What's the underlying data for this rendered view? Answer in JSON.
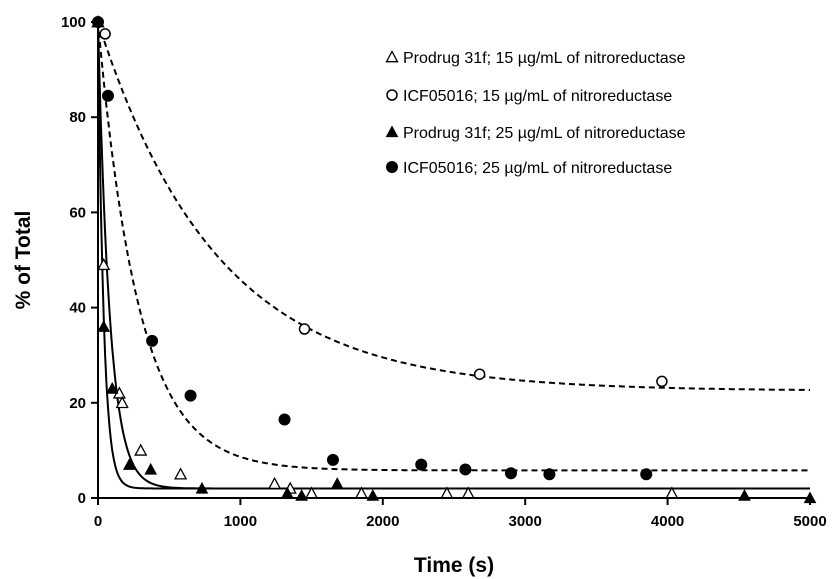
{
  "chart_data": {
    "type": "scatter",
    "title": "",
    "xlabel": "Time (s)",
    "ylabel": "% of Total",
    "xlim": [
      0,
      5000
    ],
    "ylim": [
      0,
      100
    ],
    "xticks": [
      0,
      1000,
      2000,
      3000,
      4000,
      5000
    ],
    "yticks": [
      0,
      20,
      40,
      60,
      80,
      100
    ],
    "grid": false,
    "legend_position": "top-right",
    "series": [
      {
        "name": "Prodrug 31f; 15 µg/mL of nitroreductase",
        "marker": "triangle-open",
        "points": [
          [
            0,
            100
          ],
          [
            40,
            49
          ],
          [
            150,
            22
          ],
          [
            170,
            20
          ],
          [
            300,
            10
          ],
          [
            580,
            5
          ],
          [
            1240,
            3
          ],
          [
            1350,
            2
          ],
          [
            1500,
            1
          ],
          [
            1850,
            1
          ],
          [
            2450,
            1
          ],
          [
            2600,
            1
          ],
          [
            4030,
            1
          ]
        ],
        "fit": {
          "style": "solid",
          "plateau": 2,
          "span": 98,
          "k": 0.012
        }
      },
      {
        "name": "ICF05016; 15 µg/mL of nitroreductase",
        "marker": "circle-open",
        "points": [
          [
            50,
            97.5
          ],
          [
            1450,
            35.5
          ],
          [
            2680,
            26
          ],
          [
            3960,
            24.5
          ]
        ],
        "fit": {
          "style": "dashed",
          "plateau": 22.5,
          "span": 77.5,
          "k": 0.0012
        }
      },
      {
        "name": "Prodrug 31f; 25 µg/mL of nitroreductase",
        "marker": "triangle-filled",
        "points": [
          [
            0,
            100
          ],
          [
            40,
            36
          ],
          [
            100,
            23
          ],
          [
            220,
            7
          ],
          [
            370,
            6
          ],
          [
            730,
            2
          ],
          [
            1330,
            1
          ],
          [
            1430,
            0.5
          ],
          [
            1680,
            3
          ],
          [
            1930,
            0.5
          ],
          [
            4540,
            0.5
          ],
          [
            5000,
            0
          ]
        ],
        "fit": {
          "style": "solid",
          "plateau": 2,
          "span": 98,
          "k": 0.025
        }
      },
      {
        "name": "ICF05016; 25 µg/mL of nitroreductase",
        "marker": "circle-filled",
        "points": [
          [
            0,
            100
          ],
          [
            70,
            84.5
          ],
          [
            380,
            33
          ],
          [
            650,
            21.5
          ],
          [
            1310,
            16.5
          ],
          [
            1650,
            8
          ],
          [
            2270,
            7
          ],
          [
            2580,
            6
          ],
          [
            2900,
            5.2
          ],
          [
            3170,
            5
          ],
          [
            3850,
            5
          ]
        ],
        "fit": {
          "style": "dashed",
          "plateau": 5.8,
          "span": 94.2,
          "k": 0.0035
        }
      }
    ]
  }
}
